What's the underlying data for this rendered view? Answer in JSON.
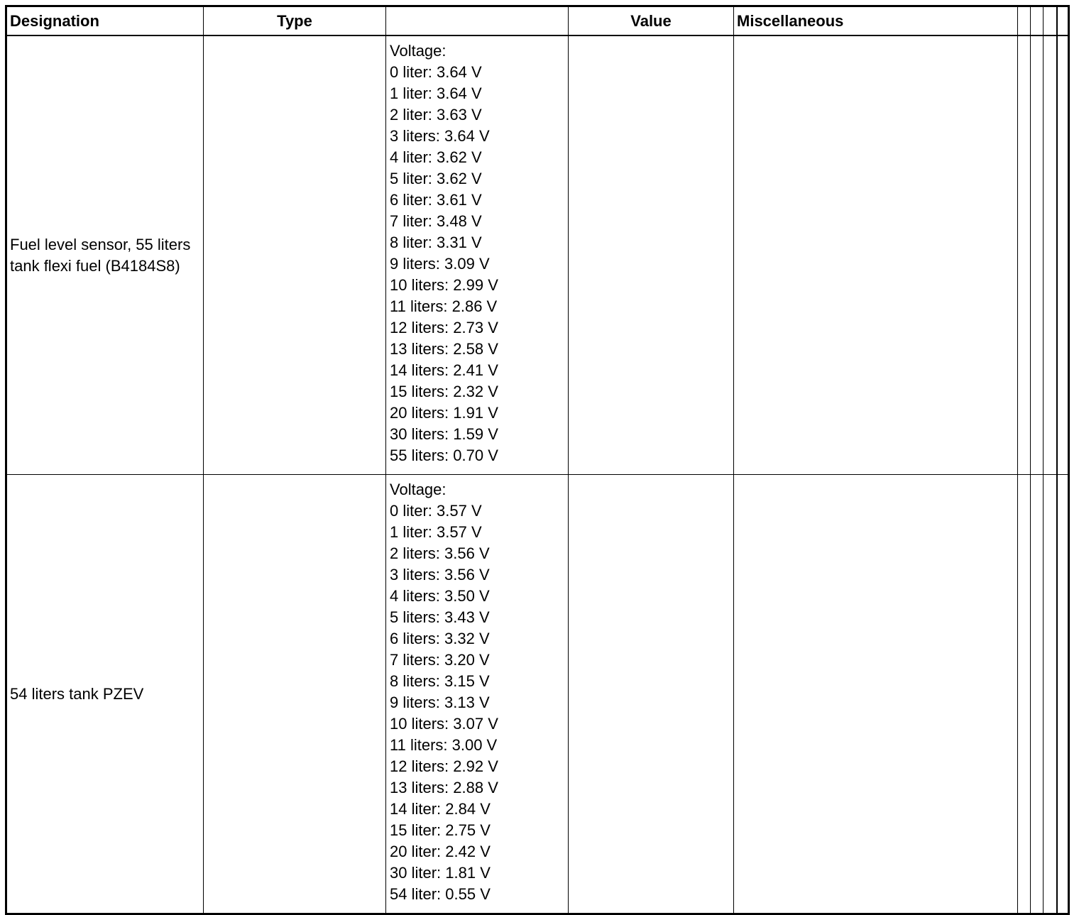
{
  "headers": {
    "designation": "Designation",
    "type": "Type",
    "blank": "",
    "value": "Value",
    "misc": "Miscellaneous"
  },
  "rows": [
    {
      "designation": "Fuel level sensor, 55 liters tank flexi fuel (B4184S8)",
      "type": "",
      "voltage_title": "Voltage:",
      "readings": [
        "0 liter: 3.64 V",
        "1 liter: 3.64 V",
        "2 liter: 3.63 V",
        "3 liters: 3.64 V",
        "4 liter: 3.62 V",
        "5 liter: 3.62 V",
        "6 liter: 3.61 V",
        "7 liter: 3.48 V",
        "8 liter: 3.31 V",
        "9 liters: 3.09 V",
        "10 liters: 2.99 V",
        "11 liters: 2.86 V",
        "12 liters: 2.73 V",
        "13 liters: 2.58 V",
        "14 liters: 2.41 V",
        "15 liters: 2.32 V",
        "20 liters: 1.91 V",
        "30 liters: 1.59 V",
        "55 liters: 0.70 V"
      ],
      "value": "",
      "misc": ""
    },
    {
      "designation": "54 liters tank PZEV",
      "type": "",
      "voltage_title": "Voltage:",
      "readings": [
        "0 liter: 3.57 V",
        "1 liter: 3.57 V",
        "2 liters: 3.56 V",
        "3 liters: 3.56 V",
        "4 liters: 3.50 V",
        "5 liters: 3.43 V",
        "6 liters: 3.32 V",
        "7 liters: 3.20 V",
        "8 liters: 3.15 V",
        "9 liters: 3.13 V",
        "10 liters: 3.07 V",
        "11 liters: 3.00 V",
        "12 liters: 2.92 V",
        "13 liters: 2.88 V",
        "14 liter: 2.84 V",
        "15 liter: 2.75 V",
        "20 liter: 2.42 V",
        "30 liter: 1.81 V",
        "54 liter: 0.55 V"
      ],
      "value": "",
      "misc": ""
    }
  ]
}
